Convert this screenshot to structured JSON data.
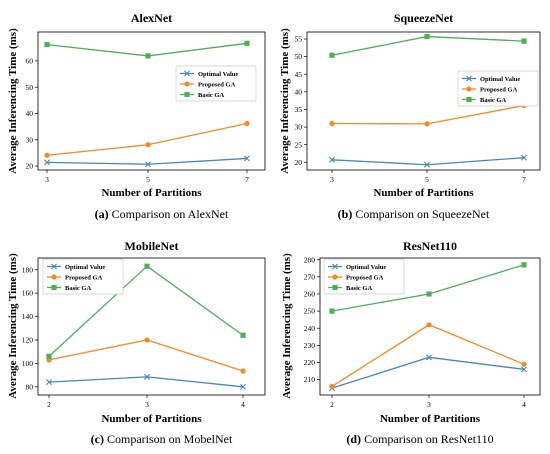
{
  "chart_data": [
    {
      "type": "line",
      "title": "AlexNet",
      "xlabel": "Number of Partitions",
      "ylabel": "Average Inferencing Time (ms)",
      "caption_letter": "(a)",
      "caption_text": "Comparison on AlexNet",
      "categories": [
        "3",
        "5",
        "7"
      ],
      "ylim": [
        18.5,
        71
      ],
      "yticks": [
        "20",
        "30",
        "40",
        "50",
        "60"
      ],
      "ytick_values": [
        20,
        30,
        40,
        50,
        60
      ],
      "legend_position": "center-right",
      "series": [
        {
          "name": "Optimal Value",
          "values": [
            21.4,
            20.7,
            22.9
          ],
          "color": "#4a86b8",
          "marker": "x"
        },
        {
          "name": "Proposed GA",
          "values": [
            24.1,
            28.1,
            36.2
          ],
          "color": "#f4892a",
          "marker": "circle"
        },
        {
          "name": "Basic GA",
          "values": [
            66.2,
            61.9,
            66.7
          ],
          "color": "#4fad5b",
          "marker": "square"
        }
      ]
    },
    {
      "type": "line",
      "title": "SqueezeNet",
      "xlabel": "Number of Partitions",
      "ylabel": "Average Inferencing Time (ms)",
      "caption_letter": "(b)",
      "caption_text": "Comparison on SqueezeNet",
      "categories": [
        "3",
        "5",
        "7"
      ],
      "ylim": [
        17.8,
        57
      ],
      "yticks": [
        "20",
        "25",
        "30",
        "35",
        "40",
        "45",
        "50",
        "55"
      ],
      "ytick_values": [
        20,
        25,
        30,
        35,
        40,
        45,
        50,
        55
      ],
      "legend_position": "center-right",
      "series": [
        {
          "name": "Optimal Value",
          "values": [
            20.7,
            19.3,
            21.3
          ],
          "color": "#4a86b8",
          "marker": "x"
        },
        {
          "name": "Proposed GA",
          "values": [
            31.0,
            30.9,
            36.1
          ],
          "color": "#f4892a",
          "marker": "circle"
        },
        {
          "name": "Basic GA",
          "values": [
            50.4,
            55.7,
            54.4
          ],
          "color": "#4fad5b",
          "marker": "square"
        }
      ]
    },
    {
      "type": "line",
      "title": "MobileNet",
      "xlabel": "Number of Partitions",
      "ylabel": "Average Inferencing Time (ms)",
      "caption_letter": "(c)",
      "caption_text": "Comparison on MobelNet",
      "categories": [
        "2",
        "3",
        "4"
      ],
      "ylim": [
        73,
        190
      ],
      "yticks": [
        "80",
        "100",
        "120",
        "140",
        "160",
        "180"
      ],
      "ytick_values": [
        80,
        100,
        120,
        140,
        160,
        180
      ],
      "legend_position": "top-left",
      "series": [
        {
          "name": "Optimal Value",
          "values": [
            84,
            88.5,
            80
          ],
          "color": "#4a86b8",
          "marker": "x"
        },
        {
          "name": "Proposed GA",
          "values": [
            103,
            120,
            93.5
          ],
          "color": "#f4892a",
          "marker": "circle"
        },
        {
          "name": "Basic GA",
          "values": [
            106,
            183,
            124
          ],
          "color": "#4fad5b",
          "marker": "square"
        }
      ]
    },
    {
      "type": "line",
      "title": "ResNet110",
      "xlabel": "Number of Partitions",
      "ylabel": "Average Inferencing Time (ms)",
      "caption_letter": "(d)",
      "caption_text": "Comparison on ResNet110",
      "categories": [
        "2",
        "3",
        "4"
      ],
      "ylim": [
        201,
        281
      ],
      "yticks": [
        "210",
        "220",
        "230",
        "240",
        "250",
        "260",
        "270",
        "280"
      ],
      "ytick_values": [
        210,
        220,
        230,
        240,
        250,
        260,
        270,
        280
      ],
      "legend_position": "top-left",
      "series": [
        {
          "name": "Optimal Value",
          "values": [
            205,
            223,
            216
          ],
          "color": "#4a86b8",
          "marker": "x"
        },
        {
          "name": "Proposed GA",
          "values": [
            206,
            242,
            219
          ],
          "color": "#f4892a",
          "marker": "circle"
        },
        {
          "name": "Basic GA",
          "values": [
            250,
            260,
            277
          ],
          "color": "#4fad5b",
          "marker": "square"
        }
      ]
    }
  ]
}
